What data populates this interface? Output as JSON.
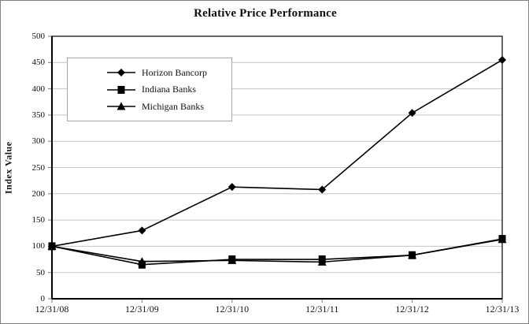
{
  "window": {
    "title": "Relative Price Performance"
  },
  "chart_data": {
    "type": "line",
    "title": "Relative Price Performance",
    "xlabel": "",
    "ylabel": "Index Value",
    "categories": [
      "12/31/08",
      "12/31/09",
      "12/31/10",
      "12/31/11",
      "12/31/12",
      "12/31/13"
    ],
    "series": [
      {
        "name": "Horizon Bancorp",
        "marker": "diamond",
        "values": [
          100,
          130,
          213,
          208,
          354,
          455
        ]
      },
      {
        "name": "Indiana Banks",
        "marker": "square",
        "values": [
          100,
          65,
          75,
          75,
          83,
          114
        ]
      },
      {
        "name": "Michigan Banks",
        "marker": "triangle",
        "values": [
          100,
          71,
          73,
          70,
          83,
          113
        ]
      }
    ],
    "ylim": [
      0,
      500
    ],
    "ytick_step": 50,
    "grid": true,
    "legend_position": "upper-left-inside",
    "colors": {
      "series": "#000000",
      "grid": "#c4c4c4",
      "axis": "#000000",
      "tick": "#7a7a7a",
      "background": "#ffffff",
      "legend_border": "#a8a8a8",
      "frame_border": "#7f7f7f"
    }
  }
}
